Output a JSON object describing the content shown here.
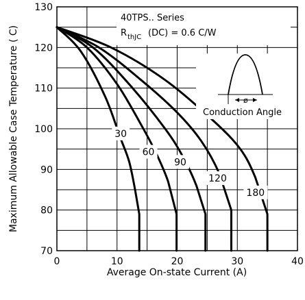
{
  "chart_data": {
    "type": "line",
    "xlabel": "Average On-state Current (A)",
    "ylabel": "Maximum Allowable Case Temperature ( C)",
    "xlim": [
      0,
      40
    ],
    "ylim": [
      70,
      130
    ],
    "x_ticks": [
      "0",
      "10",
      "20",
      "30",
      "40"
    ],
    "y_ticks": [
      "70",
      "80",
      "90",
      "100",
      "110",
      "120",
      "130"
    ],
    "grid": true,
    "annotation": {
      "series_title": "40TPS.. Series",
      "rth_prefix": "R",
      "rth_subscript": "thJC",
      "rth_suffix": "(DC) = 0.6  C/W",
      "inset_label": "Conduction Angle",
      "phi_symbol": "ø"
    },
    "series": [
      {
        "name": "30",
        "x": [
          0,
          4,
          8,
          10.5,
          12,
          13,
          13.7,
          13.7
        ],
        "y": [
          125,
          119,
          108,
          98,
          92,
          85,
          79,
          70
        ]
      },
      {
        "name": "60",
        "x": [
          0,
          5,
          10,
          14,
          16.5,
          18.5,
          19.9,
          19.9
        ],
        "y": [
          125,
          120,
          111,
          101,
          94,
          87,
          79,
          70
        ]
      },
      {
        "name": "90",
        "x": [
          0,
          6,
          12,
          18,
          21,
          23.2,
          24.7,
          24.7
        ],
        "y": [
          125,
          120,
          111,
          100,
          93,
          86,
          79,
          70
        ]
      },
      {
        "name": "120",
        "x": [
          0,
          7,
          14,
          20,
          24,
          27,
          29,
          29
        ],
        "y": [
          125,
          120,
          112,
          104,
          97,
          89,
          80,
          70
        ]
      },
      {
        "name": "180",
        "x": [
          0,
          9,
          18,
          26,
          30.5,
          33,
          35,
          35
        ],
        "y": [
          125,
          120,
          112,
          102,
          95,
          88,
          79,
          70
        ]
      }
    ],
    "curve_labels": [
      {
        "text": "30",
        "x": 9.6,
        "y": 98
      },
      {
        "text": "60",
        "x": 14.2,
        "y": 93.5
      },
      {
        "text": "90",
        "x": 19.5,
        "y": 91
      },
      {
        "text": "120",
        "x": 25.2,
        "y": 87
      },
      {
        "text": "180",
        "x": 31.5,
        "y": 83.5
      }
    ]
  }
}
